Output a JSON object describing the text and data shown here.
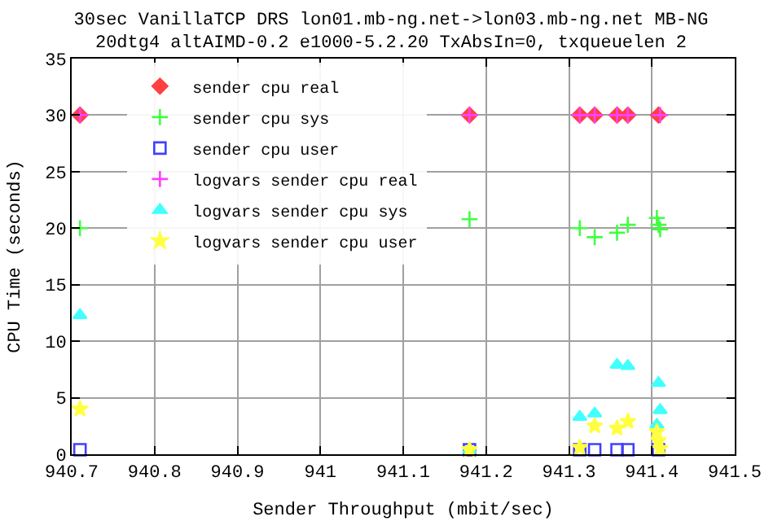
{
  "chart_data": {
    "type": "scatter",
    "title": "30sec VanillaTCP DRS lon01.mb-ng.net->lon03.mb-ng.net MB-NG\n20dtg4 altAIMD-0.2 e1000-5.2.20 TxAbsIn=0, txqueuelen 2",
    "xlabel": "Sender Throughput (mbit/sec)",
    "ylabel": "CPU Time (seconds)",
    "xlim": [
      940.7,
      941.5
    ],
    "xticks": [
      940.7,
      940.8,
      940.9,
      941,
      941.1,
      941.2,
      941.3,
      941.4,
      941.5
    ],
    "ylim": [
      0,
      35
    ],
    "yticks": [
      0,
      5,
      10,
      15,
      20,
      25,
      30,
      35
    ],
    "grid": true,
    "legend": "top",
    "series": [
      {
        "name": "sender cpu real",
        "color": "#ff4040",
        "marker": "diamond",
        "x": [
          940.71,
          941.18,
          941.313,
          941.331,
          941.358,
          941.371,
          941.408
        ],
        "values": [
          30,
          30,
          30,
          30,
          30,
          30,
          30
        ]
      },
      {
        "name": "sender cpu sys",
        "color": "#40ff40",
        "marker": "cross",
        "x": [
          940.71,
          941.18,
          941.313,
          941.331,
          941.358,
          941.371,
          941.406,
          941.408,
          941.41
        ],
        "values": [
          20,
          20.8,
          20,
          19.2,
          19.6,
          20.3,
          20.9,
          20.3,
          19.9
        ]
      },
      {
        "name": "sender cpu user",
        "color": "#4040ff",
        "marker": "square",
        "x": [
          940.71,
          941.18,
          941.313,
          941.331,
          941.358,
          941.371,
          941.408
        ],
        "values": [
          0.4,
          0.4,
          0.4,
          0.4,
          0.4,
          0.4,
          0.4
        ]
      },
      {
        "name": "logvars sender cpu real",
        "color": "#ff40ff",
        "marker": "cross",
        "x": [
          940.71,
          941.18,
          941.313,
          941.331,
          941.358,
          941.371,
          941.41
        ],
        "values": [
          30,
          30,
          30,
          30,
          30,
          30,
          30
        ]
      },
      {
        "name": "logvars sender cpu sys",
        "color": "#40ffff",
        "marker": "triangle",
        "x": [
          940.71,
          941.18,
          941.313,
          941.331,
          941.358,
          941.371,
          941.408,
          941.41,
          941.406
        ],
        "values": [
          12.3,
          0.4,
          3.3,
          3.6,
          7.9,
          7.8,
          6.3,
          3.9,
          2.6
        ]
      },
      {
        "name": "logvars sender cpu user",
        "color": "#ffff40",
        "marker": "star",
        "x": [
          940.71,
          941.18,
          941.313,
          941.331,
          941.358,
          941.371,
          941.406,
          941.408,
          941.41
        ],
        "values": [
          4,
          0.4,
          0.6,
          2.5,
          2.3,
          2.9,
          2,
          1.2,
          0.5
        ]
      }
    ]
  }
}
